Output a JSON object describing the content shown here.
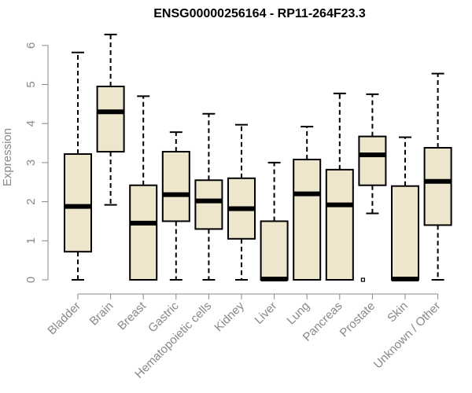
{
  "chart_data": {
    "type": "box",
    "title": "ENSG00000256164 - RP11-264F23.3",
    "xlabel": "",
    "ylabel": "Expression",
    "ylim": [
      0,
      6.3
    ],
    "yticks": [
      0,
      1,
      2,
      3,
      4,
      5,
      6
    ],
    "categories": [
      "Bladder",
      "Brain",
      "Breast",
      "Gastric",
      "Hematopoietic cells",
      "Kidney",
      "Liver",
      "Lung",
      "Pancreas",
      "Prostate",
      "Skin",
      "Unknown / Other"
    ],
    "boxes": [
      {
        "whisker_low": 0,
        "q1": 0.72,
        "median": 1.88,
        "q3": 3.22,
        "whisker_high": 5.82,
        "outliers": []
      },
      {
        "whisker_low": 1.92,
        "q1": 3.28,
        "median": 4.3,
        "q3": 4.95,
        "whisker_high": 6.28,
        "outliers": []
      },
      {
        "whisker_low": 0,
        "q1": 0,
        "median": 1.45,
        "q3": 2.42,
        "whisker_high": 4.7,
        "outliers": []
      },
      {
        "whisker_low": 0,
        "q1": 1.5,
        "median": 2.18,
        "q3": 3.28,
        "whisker_high": 3.78,
        "outliers": []
      },
      {
        "whisker_low": 0,
        "q1": 1.3,
        "median": 2.02,
        "q3": 2.55,
        "whisker_high": 4.25,
        "outliers": []
      },
      {
        "whisker_low": 0,
        "q1": 1.05,
        "median": 1.82,
        "q3": 2.6,
        "whisker_high": 3.97,
        "outliers": []
      },
      {
        "whisker_low": 0,
        "q1": 0,
        "median": 0.02,
        "q3": 1.5,
        "whisker_high": 3.0,
        "outliers": []
      },
      {
        "whisker_low": 0,
        "q1": 0,
        "median": 2.2,
        "q3": 3.08,
        "whisker_high": 3.92,
        "outliers": []
      },
      {
        "whisker_low": 0,
        "q1": 0,
        "median": 1.92,
        "q3": 2.82,
        "whisker_high": 4.77,
        "outliers": []
      },
      {
        "whisker_low": 1.7,
        "q1": 2.42,
        "median": 3.2,
        "q3": 3.67,
        "whisker_high": 4.75,
        "outliers": [
          0
        ]
      },
      {
        "whisker_low": 0,
        "q1": 0,
        "median": 0.02,
        "q3": 2.4,
        "whisker_high": 3.65,
        "outliers": []
      },
      {
        "whisker_low": 0,
        "q1": 1.4,
        "median": 2.52,
        "q3": 3.38,
        "whisker_high": 5.28,
        "outliers": []
      }
    ],
    "box_fill": "#ede6cc",
    "box_stroke": "#000000",
    "axis_color": "#888888",
    "grid": false,
    "legend": "none"
  }
}
